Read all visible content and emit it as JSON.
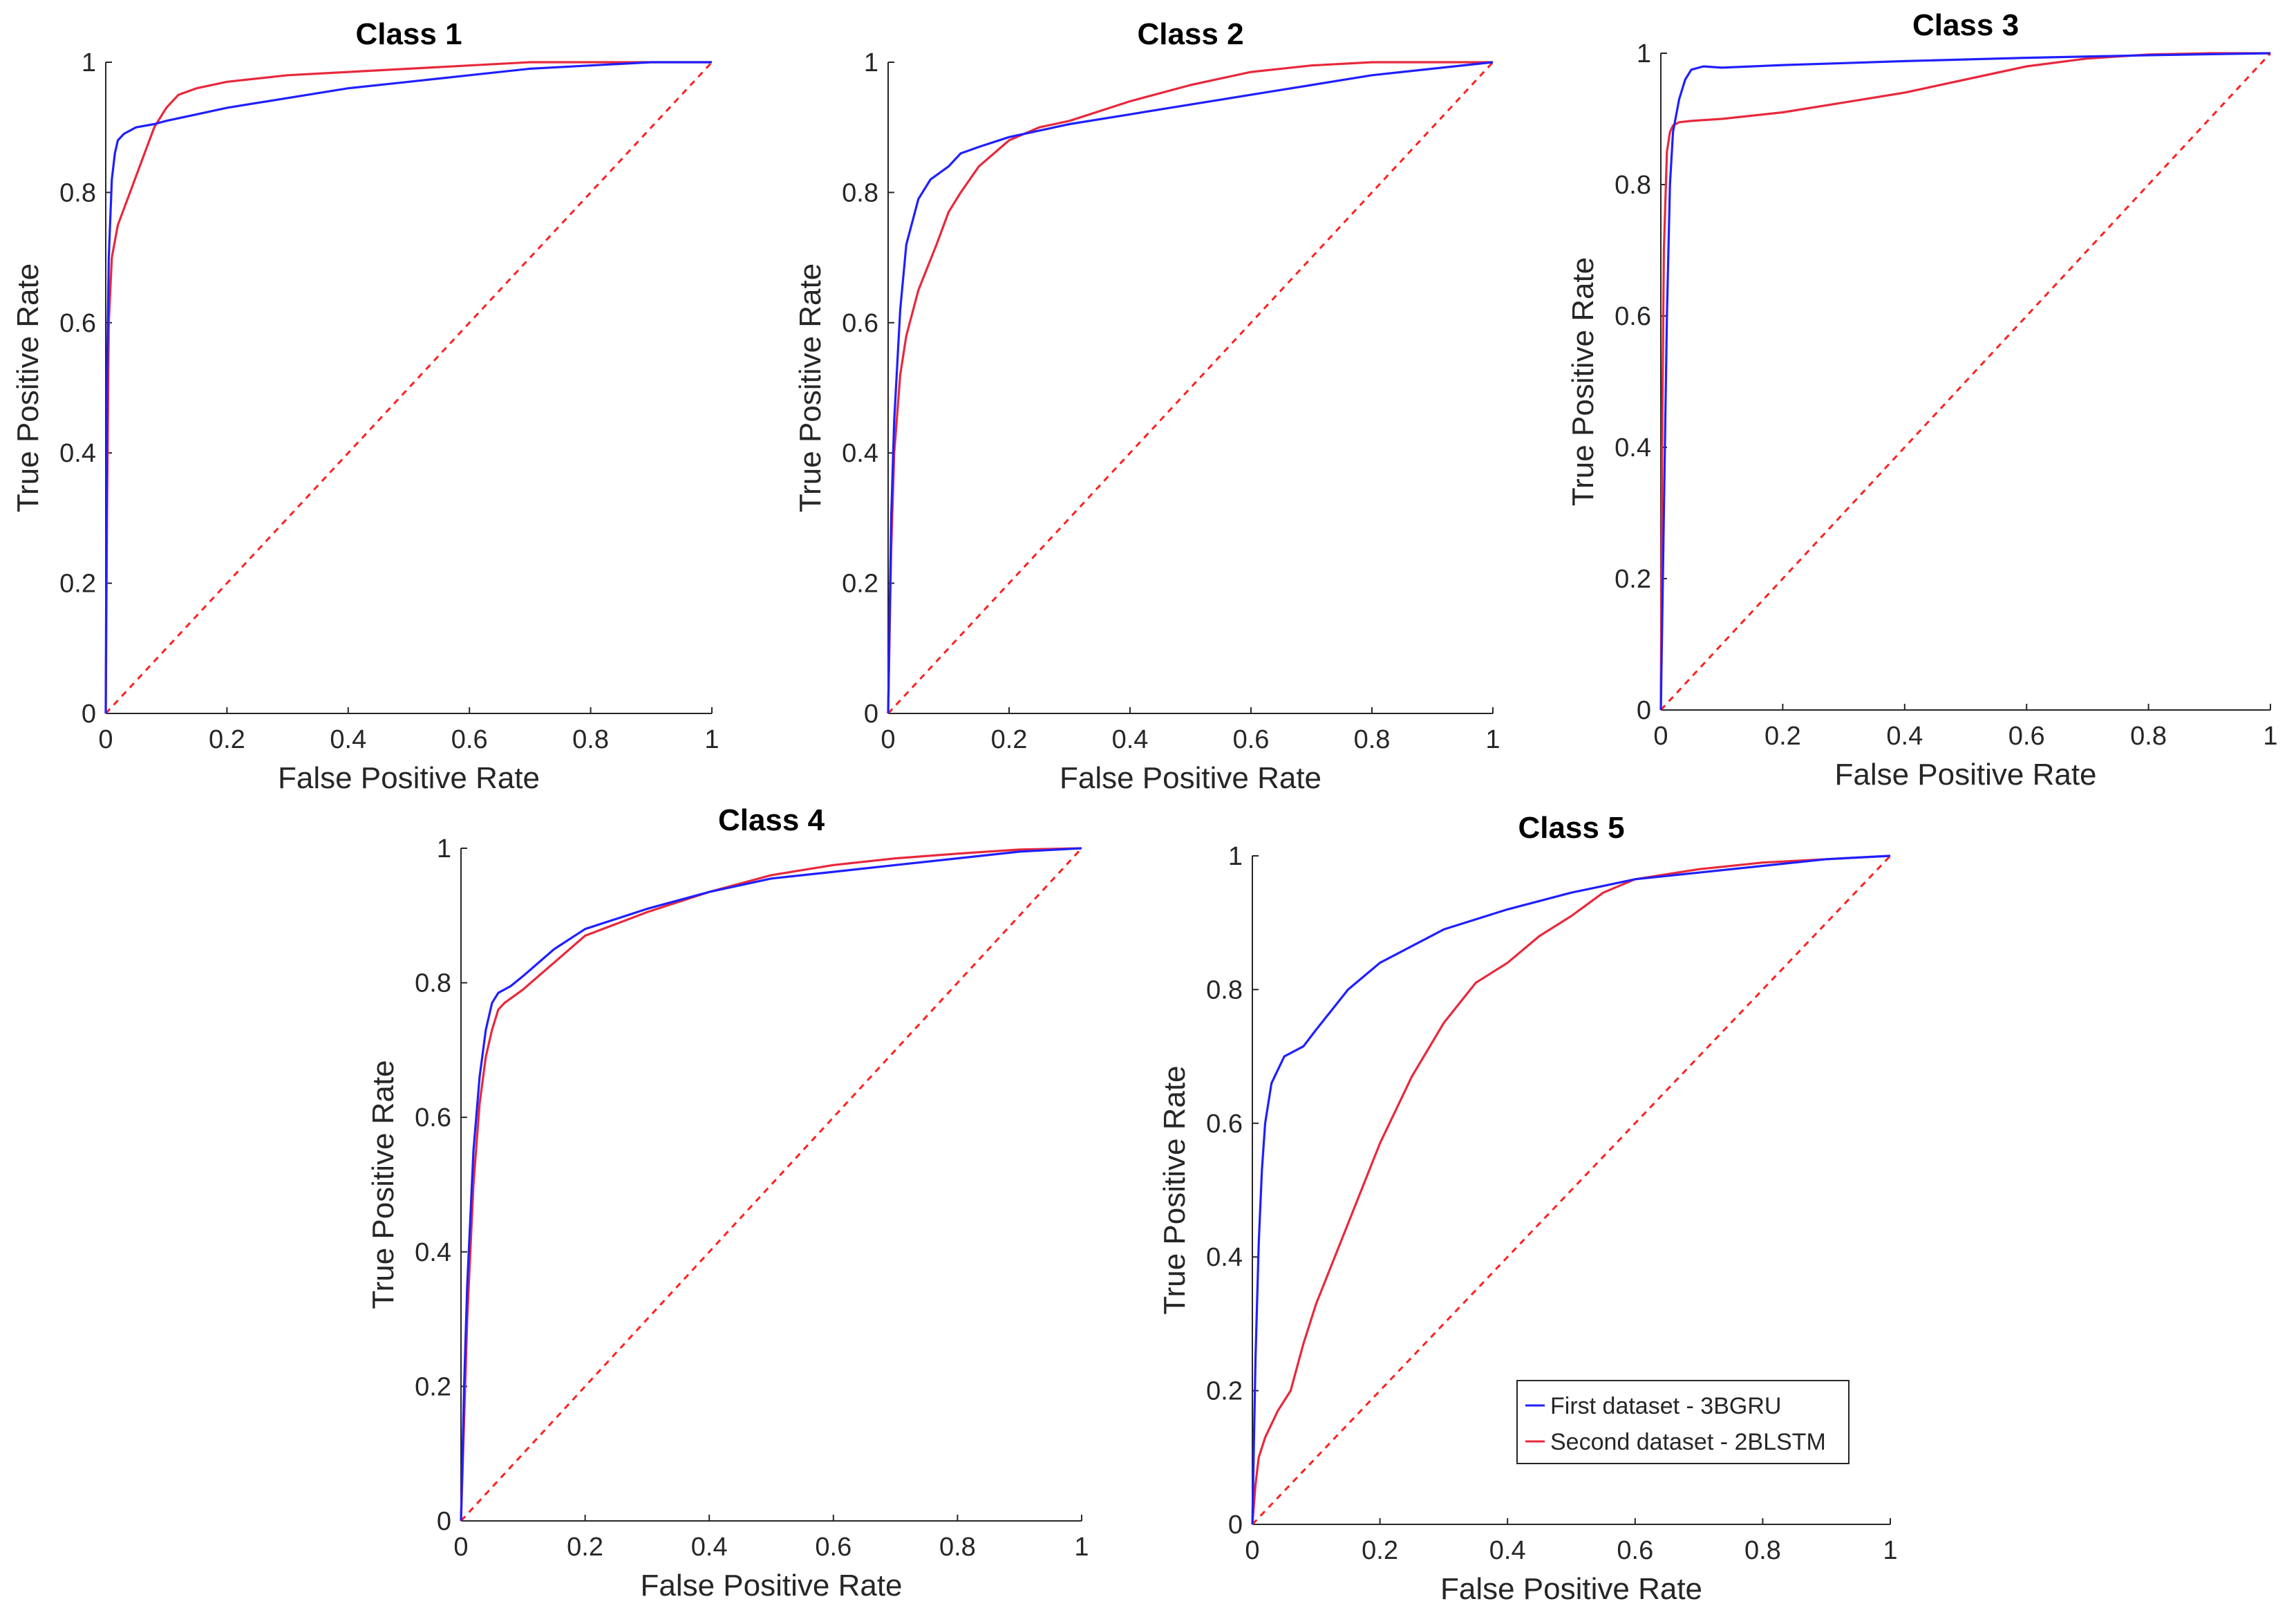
{
  "colors": {
    "first": "#1f1fff",
    "second": "#e8283c",
    "diagonal": "#ff2020",
    "axis": "#262626"
  },
  "legend": {
    "entries": [
      "First dataset - 3BGRU",
      "Second dataset - 2BLSTM"
    ],
    "placement": "lower-right of Class 5"
  },
  "chart_data": [
    {
      "type": "line",
      "title": "Class 1",
      "xlabel": "False Positive Rate",
      "ylabel": "True Positive Rate",
      "xlim": [
        0,
        1
      ],
      "ylim": [
        0,
        1
      ],
      "xticks": [
        "0",
        "0.2",
        "0.4",
        "0.6",
        "0.8",
        "1"
      ],
      "yticks": [
        "0",
        "0.2",
        "0.4",
        "0.6",
        "0.8",
        "1"
      ],
      "series": [
        {
          "name": "First dataset - 3BGRU",
          "x": [
            0,
            0.002,
            0.005,
            0.01,
            0.015,
            0.02,
            0.03,
            0.05,
            0.08,
            0.1,
            0.15,
            0.2,
            0.3,
            0.4,
            0.5,
            0.6,
            0.7,
            0.8,
            0.9,
            1
          ],
          "y": [
            0,
            0.5,
            0.7,
            0.82,
            0.86,
            0.88,
            0.89,
            0.9,
            0.905,
            0.91,
            0.92,
            0.93,
            0.945,
            0.96,
            0.97,
            0.98,
            0.99,
            0.995,
            1,
            1
          ]
        },
        {
          "name": "Second dataset - 2BLSTM",
          "x": [
            0,
            0.002,
            0.005,
            0.01,
            0.02,
            0.04,
            0.06,
            0.08,
            0.1,
            0.12,
            0.15,
            0.2,
            0.3,
            0.4,
            0.5,
            0.6,
            0.7,
            0.8,
            0.9,
            1
          ],
          "y": [
            0,
            0.3,
            0.6,
            0.7,
            0.75,
            0.8,
            0.85,
            0.9,
            0.93,
            0.95,
            0.96,
            0.97,
            0.98,
            0.985,
            0.99,
            0.995,
            1,
            1,
            1,
            1
          ]
        }
      ]
    },
    {
      "type": "line",
      "title": "Class 2",
      "xlabel": "False Positive Rate",
      "ylabel": "True Positive Rate",
      "xlim": [
        0,
        1
      ],
      "ylim": [
        0,
        1
      ],
      "xticks": [
        "0",
        "0.2",
        "0.4",
        "0.6",
        "0.8",
        "1"
      ],
      "yticks": [
        "0",
        "0.2",
        "0.4",
        "0.6",
        "0.8",
        "1"
      ],
      "series": [
        {
          "name": "First dataset - 3BGRU",
          "x": [
            0,
            0.005,
            0.01,
            0.02,
            0.03,
            0.05,
            0.07,
            0.1,
            0.12,
            0.15,
            0.2,
            0.3,
            0.4,
            0.5,
            0.6,
            0.7,
            0.8,
            0.9,
            1
          ],
          "y": [
            0,
            0.3,
            0.45,
            0.62,
            0.72,
            0.79,
            0.82,
            0.84,
            0.86,
            0.87,
            0.885,
            0.905,
            0.92,
            0.935,
            0.95,
            0.965,
            0.98,
            0.99,
            1
          ]
        },
        {
          "name": "Second dataset - 2BLSTM",
          "x": [
            0,
            0.005,
            0.01,
            0.02,
            0.03,
            0.05,
            0.08,
            0.1,
            0.12,
            0.15,
            0.2,
            0.25,
            0.3,
            0.4,
            0.5,
            0.6,
            0.7,
            0.8,
            0.9,
            1
          ],
          "y": [
            0,
            0.25,
            0.4,
            0.52,
            0.58,
            0.65,
            0.72,
            0.77,
            0.8,
            0.84,
            0.88,
            0.9,
            0.91,
            0.94,
            0.965,
            0.985,
            0.995,
            1,
            1,
            1
          ]
        }
      ]
    },
    {
      "type": "line",
      "title": "Class 3",
      "xlabel": "False Positive Rate",
      "ylabel": "True Positive Rate",
      "xlim": [
        0,
        1
      ],
      "ylim": [
        0,
        1
      ],
      "xticks": [
        "0",
        "0.2",
        "0.4",
        "0.6",
        "0.8",
        "1"
      ],
      "yticks": [
        "0",
        "0.2",
        "0.4",
        "0.6",
        "0.8",
        "1"
      ],
      "series": [
        {
          "name": "First dataset - 3BGRU",
          "x": [
            0,
            0.005,
            0.01,
            0.015,
            0.02,
            0.03,
            0.04,
            0.05,
            0.07,
            0.1,
            0.15,
            0.2,
            0.3,
            0.4,
            0.6,
            0.8,
            1
          ],
          "y": [
            0,
            0.3,
            0.6,
            0.8,
            0.88,
            0.93,
            0.96,
            0.975,
            0.98,
            0.978,
            0.98,
            0.982,
            0.985,
            0.988,
            0.993,
            0.997,
            1
          ]
        },
        {
          "name": "Second dataset - 2BLSTM",
          "x": [
            0,
            0.002,
            0.005,
            0.01,
            0.015,
            0.02,
            0.03,
            0.05,
            0.1,
            0.2,
            0.3,
            0.4,
            0.5,
            0.6,
            0.7,
            0.8,
            0.9,
            1
          ],
          "y": [
            0,
            0.4,
            0.7,
            0.85,
            0.88,
            0.89,
            0.895,
            0.897,
            0.9,
            0.91,
            0.925,
            0.94,
            0.96,
            0.98,
            0.992,
            0.998,
            1,
            1
          ]
        }
      ]
    },
    {
      "type": "line",
      "title": "Class 4",
      "xlabel": "False Positive Rate",
      "ylabel": "True Positive Rate",
      "xlim": [
        0,
        1
      ],
      "ylim": [
        0,
        1
      ],
      "xticks": [
        "0",
        "0.2",
        "0.4",
        "0.6",
        "0.8",
        "1"
      ],
      "yticks": [
        "0",
        "0.2",
        "0.4",
        "0.6",
        "0.8",
        "1"
      ],
      "series": [
        {
          "name": "First dataset - 3BGRU",
          "x": [
            0,
            0.005,
            0.01,
            0.02,
            0.03,
            0.04,
            0.05,
            0.06,
            0.08,
            0.1,
            0.15,
            0.2,
            0.3,
            0.4,
            0.5,
            0.6,
            0.7,
            0.8,
            0.9,
            1
          ],
          "y": [
            0,
            0.2,
            0.35,
            0.55,
            0.66,
            0.73,
            0.77,
            0.785,
            0.795,
            0.81,
            0.85,
            0.88,
            0.91,
            0.935,
            0.955,
            0.965,
            0.975,
            0.985,
            0.995,
            1
          ]
        },
        {
          "name": "Second dataset - 2BLSTM",
          "x": [
            0,
            0.005,
            0.01,
            0.02,
            0.03,
            0.04,
            0.05,
            0.06,
            0.07,
            0.1,
            0.15,
            0.2,
            0.3,
            0.4,
            0.5,
            0.6,
            0.7,
            0.8,
            0.9,
            1
          ],
          "y": [
            0,
            0.15,
            0.3,
            0.5,
            0.62,
            0.69,
            0.73,
            0.76,
            0.77,
            0.79,
            0.83,
            0.87,
            0.905,
            0.935,
            0.96,
            0.975,
            0.985,
            0.992,
            0.998,
            1
          ]
        }
      ]
    },
    {
      "type": "line",
      "title": "Class 5",
      "xlabel": "False Positive Rate",
      "ylabel": "True Positive Rate",
      "xlim": [
        0,
        1
      ],
      "ylim": [
        0,
        1
      ],
      "xticks": [
        "0",
        "0.2",
        "0.4",
        "0.6",
        "0.8",
        "1"
      ],
      "yticks": [
        "0",
        "0.2",
        "0.4",
        "0.6",
        "0.8",
        "1"
      ],
      "series": [
        {
          "name": "First dataset - 3BGRU",
          "x": [
            0,
            0.005,
            0.01,
            0.015,
            0.02,
            0.03,
            0.05,
            0.08,
            0.1,
            0.15,
            0.2,
            0.3,
            0.4,
            0.5,
            0.6,
            0.7,
            0.8,
            0.9,
            1
          ],
          "y": [
            0,
            0.25,
            0.42,
            0.53,
            0.6,
            0.66,
            0.7,
            0.715,
            0.74,
            0.8,
            0.84,
            0.89,
            0.92,
            0.945,
            0.965,
            0.975,
            0.985,
            0.995,
            1
          ]
        },
        {
          "name": "Second dataset - 2BLSTM",
          "x": [
            0,
            0.005,
            0.01,
            0.02,
            0.04,
            0.06,
            0.08,
            0.1,
            0.15,
            0.2,
            0.25,
            0.3,
            0.35,
            0.4,
            0.45,
            0.5,
            0.55,
            0.6,
            0.7,
            0.8,
            0.9,
            1
          ],
          "y": [
            0,
            0.06,
            0.1,
            0.13,
            0.17,
            0.2,
            0.27,
            0.33,
            0.45,
            0.57,
            0.67,
            0.75,
            0.81,
            0.84,
            0.88,
            0.91,
            0.945,
            0.965,
            0.98,
            0.99,
            0.995,
            1
          ]
        }
      ]
    }
  ]
}
